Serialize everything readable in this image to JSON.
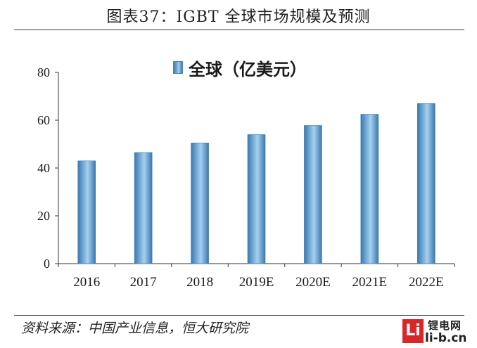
{
  "header": {
    "title": "图表37：IGBT 全球市场规模及预测"
  },
  "chart_data": {
    "type": "bar",
    "categories": [
      "2016",
      "2017",
      "2018",
      "2019E",
      "2020E",
      "2021E",
      "2022E"
    ],
    "series": [
      {
        "name": "全球（亿美元）",
        "values": [
          43,
          46.5,
          50.5,
          54,
          57.8,
          62.5,
          67
        ],
        "color": "#5b9bd5"
      }
    ],
    "ylim": [
      0,
      80
    ],
    "yticks": [
      0,
      20,
      40,
      60,
      80
    ],
    "grid": false,
    "legend": "top-center"
  },
  "footer": {
    "source": "资料来源：中国产业信息，恒大研究院"
  },
  "logo": {
    "mark": "Li",
    "name": "锂电网",
    "url": "li-b.cn"
  }
}
